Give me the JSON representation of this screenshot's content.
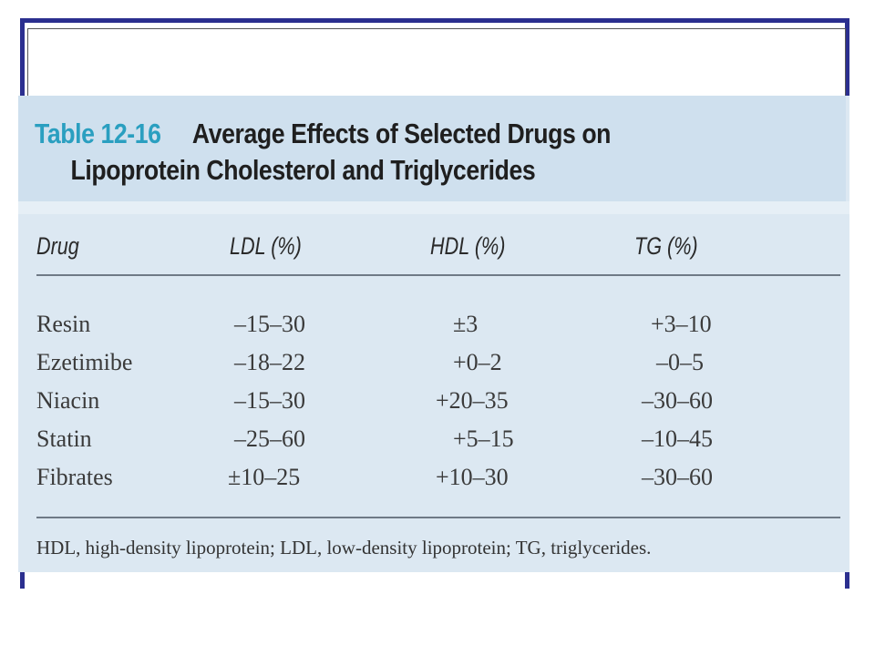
{
  "table": {
    "number": "Table 12-16",
    "title_line1": "Average Effects of Selected Drugs on",
    "title_line2": "Lipoprotein Cholesterol and Triglycerides",
    "headers": [
      "Drug",
      "LDL (%)",
      "HDL (%)",
      "TG (%)"
    ],
    "rows": [
      [
        "Resin",
        "–15–30",
        "±3",
        "+3–10"
      ],
      [
        "Ezetimibe",
        "–18–22",
        "+0–2",
        "–0–5"
      ],
      [
        "Niacin",
        "–15–30",
        "+20–35",
        "–30–60"
      ],
      [
        "Statin",
        "–25–60",
        "+5–15",
        "–10–45"
      ],
      [
        "Fibrates",
        "±10–25",
        "+10–30",
        "–30–60"
      ]
    ],
    "footnote": "HDL, high-density lipoprotein; LDL, low-density lipoprotein; TG, triglycerides."
  }
}
